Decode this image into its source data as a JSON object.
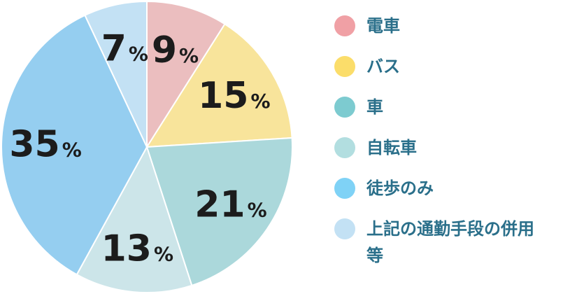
{
  "chart_data": {
    "type": "pie",
    "title": "",
    "slices": [
      {
        "label": "電車",
        "value": 9,
        "text": "9",
        "unit": "%",
        "color": "#EBBEBF",
        "legend_color": "#F0A0A5"
      },
      {
        "label": "バス",
        "value": 15,
        "text": "15",
        "unit": "%",
        "color": "#F8E49B",
        "legend_color": "#FBDD6A"
      },
      {
        "label": "車",
        "value": 21,
        "text": "21",
        "unit": "%",
        "color": "#ABD8DB",
        "legend_color": "#7DCBD0"
      },
      {
        "label": "自転車",
        "value": 13,
        "text": "13",
        "unit": "%",
        "color": "#CCE5E9",
        "legend_color": "#B2DEE0"
      },
      {
        "label": "徒歩のみ",
        "value": 35,
        "text": "35",
        "unit": "%",
        "color": "#95CEF0",
        "legend_color": "#7FD2F6"
      },
      {
        "label": "上記の通勤手段の併用等",
        "value": 7,
        "text": "7",
        "unit": "%",
        "color": "#C3E1F4",
        "legend_color": "#C3E1F4"
      }
    ],
    "start_angle_deg": 0,
    "direction": "clockwise",
    "legend_position": "right"
  }
}
